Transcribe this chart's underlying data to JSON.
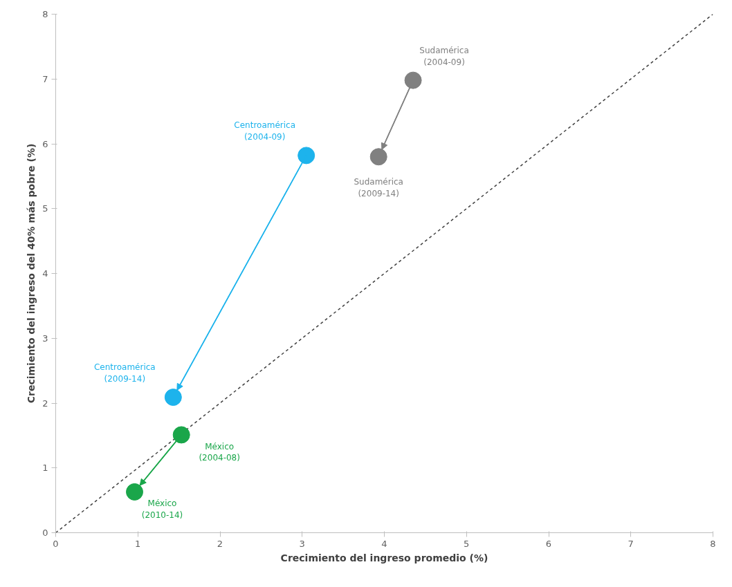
{
  "chart_data": {
    "type": "line",
    "xlabel": "Crecimiento del ingreso promedio (%)",
    "ylabel": "Crecimiento del ingreso del 40% más pobre (%)",
    "xlim": [
      0,
      8
    ],
    "ylim": [
      0,
      8
    ],
    "xticks": [
      0,
      1,
      2,
      3,
      4,
      5,
      6,
      7,
      8
    ],
    "yticks": [
      0,
      1,
      2,
      3,
      4,
      5,
      6,
      7,
      8
    ],
    "grid": false,
    "marker": "circle",
    "series": [
      {
        "type": "line",
        "color": "#404040",
        "line_style": "dashed",
        "marker": "none",
        "x": [
          0,
          8
        ],
        "values": [
          0,
          8
        ]
      },
      {
        "color": "#808080",
        "x": [
          4.35,
          3.93
        ],
        "values": [
          6.98,
          5.8
        ],
        "value_labels": [
          "Sudamérica\n(2004-09)",
          "Sudamérica\n(2009-14)"
        ]
      },
      {
        "color": "#1db3ec",
        "x": [
          3.05,
          1.43
        ],
        "values": [
          5.82,
          2.09
        ],
        "value_labels": [
          "Centroamérica\n(2004-09)",
          "Centroamérica\n(2009-14)"
        ]
      },
      {
        "color": "#1aa64a",
        "x": [
          1.53,
          0.96
        ],
        "values": [
          1.51,
          0.63
        ],
        "value_labels": [
          "México\n(2004-08)",
          "México\n(2010-14)"
        ]
      }
    ]
  }
}
